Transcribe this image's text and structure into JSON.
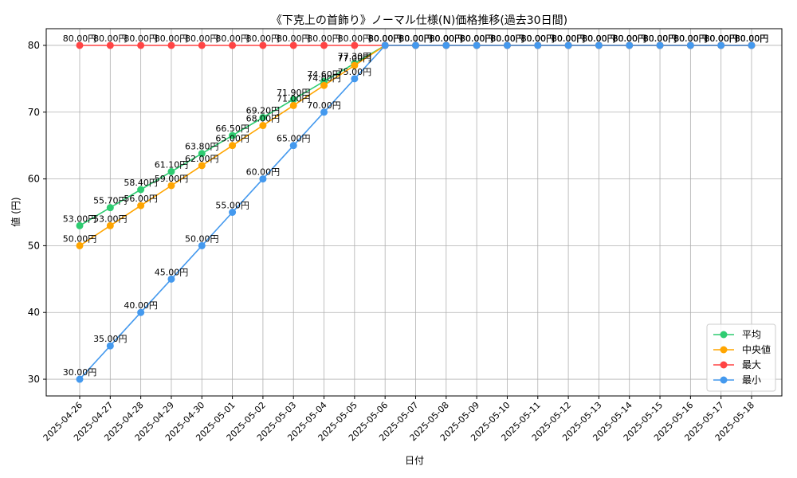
{
  "chart_data": {
    "type": "line",
    "title": "《下克上の首飾り》ノーマル仕様(N)価格推移(過去30日間)",
    "xlabel": "日付",
    "ylabel": "値 (円)",
    "ylim": [
      27.5,
      82.5
    ],
    "yticks": [
      30,
      40,
      50,
      60,
      70,
      80
    ],
    "grid": true,
    "legend_position": "lower-right",
    "label_suffix": "円",
    "categories": [
      "2025-04-26",
      "2025-04-27",
      "2025-04-28",
      "2025-04-29",
      "2025-04-30",
      "2025-05-01",
      "2025-05-02",
      "2025-05-03",
      "2025-05-04",
      "2025-05-05",
      "2025-05-06",
      "2025-05-07",
      "2025-05-08",
      "2025-05-09",
      "2025-05-10",
      "2025-05-11",
      "2025-05-12",
      "2025-05-13",
      "2025-05-14",
      "2025-05-15",
      "2025-05-16",
      "2025-05-17",
      "2025-05-18"
    ],
    "series": [
      {
        "name": "平均",
        "color": "#2ecc71",
        "values": [
          53.0,
          55.7,
          58.4,
          61.1,
          63.8,
          66.5,
          69.2,
          71.9,
          74.6,
          77.3,
          80,
          80,
          80,
          80,
          80,
          80,
          80,
          80,
          80,
          80,
          80,
          80,
          80
        ]
      },
      {
        "name": "中央値",
        "color": "#ffa500",
        "values": [
          50,
          53,
          56,
          59,
          62,
          65,
          68,
          71,
          74,
          77,
          80,
          80,
          80,
          80,
          80,
          80,
          80,
          80,
          80,
          80,
          80,
          80,
          80
        ]
      },
      {
        "name": "最大",
        "color": "#ff4444",
        "values": [
          80,
          80,
          80,
          80,
          80,
          80,
          80,
          80,
          80,
          80,
          80,
          80,
          80,
          80,
          80,
          80,
          80,
          80,
          80,
          80,
          80,
          80,
          80
        ]
      },
      {
        "name": "最小",
        "color": "#4499ee",
        "values": [
          30,
          35,
          40,
          45,
          50,
          55,
          60,
          65,
          70,
          75,
          80,
          80,
          80,
          80,
          80,
          80,
          80,
          80,
          80,
          80,
          80,
          80,
          80
        ]
      }
    ]
  }
}
